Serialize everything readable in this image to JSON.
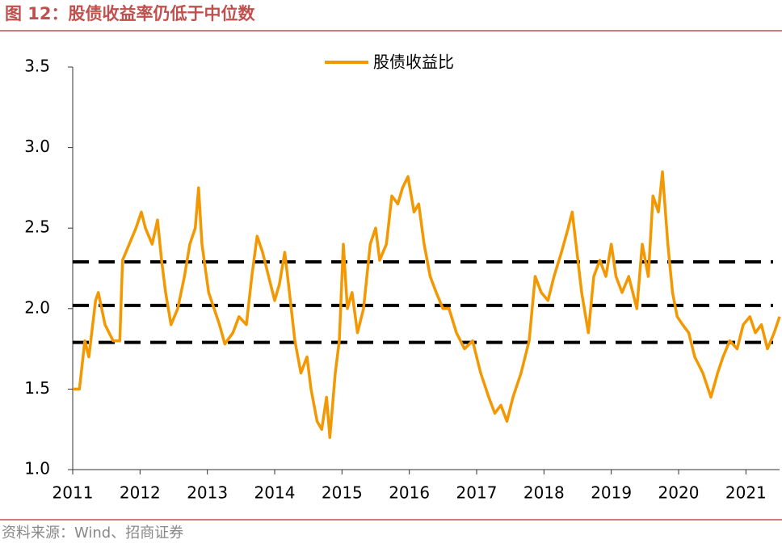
{
  "chart_data": {
    "type": "line",
    "title": "图 12：股债收益率仍低于中位数",
    "source": "资料来源：Wind、招商证券",
    "x": [
      2011.0,
      2011.1,
      2011.18,
      2011.24,
      2011.34,
      2011.38,
      2011.48,
      2011.6,
      2011.7,
      2011.74,
      2011.84,
      2011.94,
      2012.02,
      2012.08,
      2012.18,
      2012.26,
      2012.32,
      2012.38,
      2012.46,
      2012.56,
      2012.66,
      2012.74,
      2012.82,
      2012.87,
      2012.92,
      2013.02,
      2013.1,
      2013.18,
      2013.26,
      2013.38,
      2013.47,
      2013.58,
      2013.66,
      2013.74,
      2013.82,
      2013.91,
      2014.0,
      2014.07,
      2014.15,
      2014.22,
      2014.3,
      2014.39,
      2014.48,
      2014.54,
      2014.63,
      2014.7,
      2014.77,
      2014.82,
      2014.9,
      2014.96,
      2015.02,
      2015.08,
      2015.15,
      2015.23,
      2015.32,
      2015.42,
      2015.5,
      2015.56,
      2015.66,
      2015.74,
      2015.83,
      2015.9,
      2015.98,
      2016.07,
      2016.14,
      2016.22,
      2016.31,
      2016.4,
      2016.5,
      2016.59,
      2016.7,
      2016.82,
      2016.94,
      2017.06,
      2017.18,
      2017.27,
      2017.36,
      2017.45,
      2017.54,
      2017.66,
      2017.78,
      2017.87,
      2017.96,
      2018.06,
      2018.15,
      2018.26,
      2018.36,
      2018.42,
      2018.49,
      2018.56,
      2018.66,
      2018.74,
      2018.83,
      2018.92,
      2019.0,
      2019.07,
      2019.16,
      2019.26,
      2019.38,
      2019.46,
      2019.55,
      2019.62,
      2019.7,
      2019.76,
      2019.84,
      2019.91,
      2019.98,
      2020.06,
      2020.15,
      2020.24,
      2020.36,
      2020.48,
      2020.58,
      2020.66,
      2020.76,
      2020.87,
      2020.96,
      2021.06,
      2021.14,
      2021.23,
      2021.32,
      2021.42,
      2021.5
    ],
    "series": [
      {
        "name": "股债收益比",
        "color": "#f39800",
        "values": [
          1.5,
          1.5,
          1.8,
          1.7,
          2.05,
          2.1,
          1.9,
          1.8,
          1.8,
          2.3,
          2.4,
          2.5,
          2.6,
          2.5,
          2.4,
          2.55,
          2.3,
          2.1,
          1.9,
          2.0,
          2.2,
          2.4,
          2.5,
          2.75,
          2.4,
          2.1,
          2.0,
          1.9,
          1.78,
          1.85,
          1.95,
          1.9,
          2.2,
          2.45,
          2.35,
          2.2,
          2.05,
          2.15,
          2.35,
          2.1,
          1.8,
          1.6,
          1.7,
          1.5,
          1.3,
          1.25,
          1.45,
          1.2,
          1.6,
          1.8,
          2.4,
          2.0,
          2.1,
          1.85,
          2.0,
          2.4,
          2.5,
          2.3,
          2.4,
          2.7,
          2.65,
          2.75,
          2.82,
          2.6,
          2.65,
          2.4,
          2.2,
          2.1,
          2.0,
          2.0,
          1.85,
          1.75,
          1.8,
          1.6,
          1.45,
          1.35,
          1.4,
          1.3,
          1.45,
          1.6,
          1.8,
          2.2,
          2.1,
          2.05,
          2.2,
          2.35,
          2.5,
          2.6,
          2.35,
          2.1,
          1.85,
          2.2,
          2.3,
          2.2,
          2.4,
          2.2,
          2.1,
          2.2,
          2.0,
          2.4,
          2.2,
          2.7,
          2.6,
          2.85,
          2.4,
          2.1,
          1.95,
          1.9,
          1.85,
          1.7,
          1.6,
          1.45,
          1.6,
          1.7,
          1.8,
          1.75,
          1.9,
          1.95,
          1.85,
          1.9,
          1.75,
          1.85,
          1.95
        ]
      }
    ],
    "reference_lines": [
      2.29,
      2.02,
      1.79
    ],
    "xlim": [
      2011,
      2021.5
    ],
    "xticks": [
      2011,
      2012,
      2013,
      2014,
      2015,
      2016,
      2017,
      2018,
      2019,
      2020,
      2021
    ],
    "ylim": [
      1.0,
      3.5
    ],
    "yticks": [
      {
        "value": 1.0,
        "label": "1.0"
      },
      1.5,
      {
        "value": 2.0,
        "label": "2.0"
      },
      2.5,
      {
        "value": 3.0,
        "label": "3.0"
      },
      3.5
    ],
    "grid": false
  }
}
